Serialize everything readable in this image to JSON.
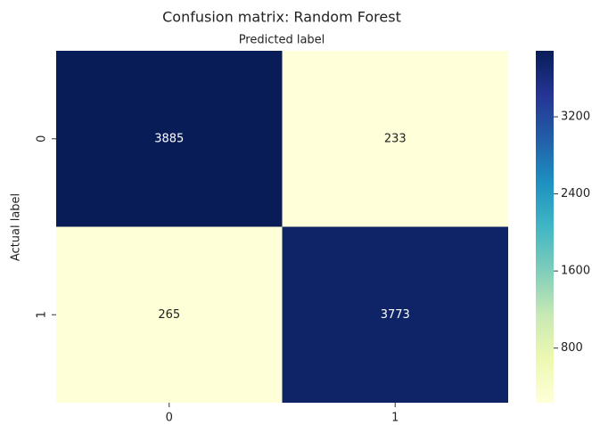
{
  "chart_data": {
    "type": "heatmap",
    "title": "Confusion matrix: Random Forest",
    "x_label": "Predicted label",
    "y_label": "Actual label",
    "x_categories": [
      "0",
      "1"
    ],
    "y_categories": [
      "0",
      "1"
    ],
    "z": [
      [
        3885,
        233
      ],
      [
        265,
        3773
      ]
    ],
    "colorscale": [
      "#ffffd9",
      "#edf8b1",
      "#c7e9b4",
      "#7fcdbb",
      "#41b6c4",
      "#1d91c0",
      "#225ea8",
      "#253494",
      "#081d58"
    ],
    "zlim": [
      233,
      3885
    ],
    "zticks": [
      800,
      1600,
      2400,
      3200
    ]
  }
}
